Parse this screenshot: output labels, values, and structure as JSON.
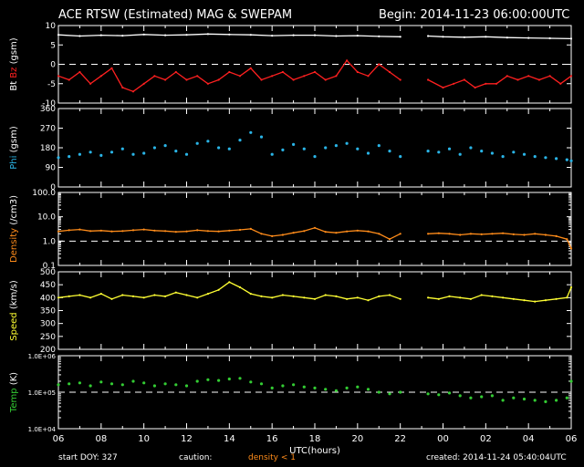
{
  "header": {
    "title": "ACE RTSW (Estimated) MAG & SWEPAM",
    "begin": "Begin: 2014-11-23 06:00:00UTC"
  },
  "footer": {
    "start_doy": "start DOY: 327",
    "caution": "caution:",
    "density_note": "density < 1",
    "created": "created: 2014-11-24 05:40:04UTC"
  },
  "colors": {
    "background": "#000000",
    "axes": "#ffffff",
    "bt": "#ffffff",
    "bz": "#ff2020",
    "phi": "#2ab4e6",
    "density": "#ff8c1a",
    "speed": "#ffff33",
    "temp": "#33cc33"
  },
  "chart_data": {
    "type": "scatter",
    "xlabel": "UTC(hours)",
    "x_ticks": [
      "06",
      "08",
      "10",
      "12",
      "14",
      "16",
      "18",
      "20",
      "22",
      "00",
      "02",
      "04",
      "06"
    ],
    "xlim_hours": [
      0,
      24
    ],
    "data_gap_hours": [
      16.05,
      17.3
    ],
    "panels": [
      {
        "id": "mag",
        "ylabel_parts": [
          {
            "text": "Bt",
            "color": "#ffffff"
          },
          {
            "text": "Bz",
            "color": "#ff2020"
          },
          {
            "text": "(gsm)",
            "color": "#ffffff"
          }
        ],
        "y_ticks": [
          "10",
          "5",
          "0",
          "-5",
          "-10"
        ],
        "y_tick_values": [
          10,
          5,
          0,
          -5,
          -10
        ],
        "ylim": [
          -10,
          10
        ],
        "scale": "linear",
        "dashed_ref": 0,
        "series": [
          {
            "key": "bt",
            "color": "#ffffff",
            "mode": "line",
            "x": [
              0,
              1,
              2,
              3,
              4,
              5,
              6,
              7,
              8,
              9,
              10,
              11,
              12,
              13,
              14,
              15,
              16,
              17.3,
              18,
              19,
              20,
              21,
              22,
              23,
              24
            ],
            "y": [
              7.6,
              7.3,
              7.5,
              7.4,
              7.7,
              7.5,
              7.6,
              7.8,
              7.7,
              7.6,
              7.4,
              7.5,
              7.5,
              7.3,
              7.4,
              7.2,
              7.1,
              7.3,
              7.1,
              7.0,
              7.1,
              6.9,
              6.8,
              6.7,
              6.6
            ]
          },
          {
            "key": "bz",
            "color": "#ff2020",
            "mode": "line",
            "x": [
              0,
              0.5,
              1,
              1.5,
              2,
              2.5,
              3,
              3.5,
              4,
              4.5,
              5,
              5.5,
              6,
              6.5,
              7,
              7.5,
              8,
              8.5,
              9,
              9.5,
              10,
              10.5,
              11,
              11.5,
              12,
              12.5,
              13,
              13.5,
              14,
              14.5,
              15,
              15.5,
              16,
              17.3,
              18,
              18.5,
              19,
              19.5,
              20,
              20.5,
              21,
              21.5,
              22,
              22.5,
              23,
              23.5,
              24
            ],
            "y": [
              -3,
              -4,
              -2,
              -5,
              -3,
              -1,
              -6,
              -7,
              -5,
              -3,
              -4,
              -2,
              -4,
              -3,
              -5,
              -4,
              -2,
              -3,
              -1,
              -4,
              -3,
              -2,
              -4,
              -3,
              -2,
              -4,
              -3,
              1,
              -2,
              -3,
              0,
              -2,
              -4,
              -4,
              -6,
              -5,
              -4,
              -6,
              -5,
              -5,
              -3,
              -4,
              -3,
              -4,
              -3,
              -5,
              -3
            ]
          }
        ]
      },
      {
        "id": "phi",
        "ylabel_parts": [
          {
            "text": "Phi",
            "color": "#2ab4e6"
          },
          {
            "text": "(gsm)",
            "color": "#ffffff"
          }
        ],
        "y_ticks": [
          "360",
          "270",
          "180",
          "90",
          "0"
        ],
        "y_tick_values": [
          360,
          270,
          180,
          90,
          0
        ],
        "ylim": [
          0,
          360
        ],
        "scale": "linear",
        "series": [
          {
            "key": "phi",
            "color": "#2ab4e6",
            "mode": "dots",
            "x": [
              0,
              0.5,
              1,
              1.5,
              2,
              2.5,
              3,
              3.5,
              4,
              4.5,
              5,
              5.5,
              6,
              6.5,
              7,
              7.5,
              8,
              8.5,
              9,
              9.5,
              10,
              10.5,
              11,
              11.5,
              12,
              12.5,
              13,
              13.5,
              14,
              14.5,
              15,
              15.5,
              16,
              17.3,
              17.8,
              18.3,
              18.8,
              19.3,
              19.8,
              20.3,
              20.8,
              21.3,
              21.8,
              22.3,
              22.8,
              23.3,
              23.8,
              24
            ],
            "y": [
              135,
              140,
              150,
              160,
              145,
              160,
              175,
              150,
              155,
              180,
              190,
              165,
              150,
              200,
              210,
              180,
              175,
              215,
              250,
              230,
              150,
              170,
              195,
              175,
              140,
              180,
              190,
              200,
              175,
              155,
              190,
              165,
              140,
              165,
              160,
              175,
              150,
              180,
              165,
              155,
              140,
              160,
              150,
              140,
              135,
              130,
              125,
              120
            ]
          }
        ]
      },
      {
        "id": "density",
        "ylabel_parts": [
          {
            "text": "Density",
            "color": "#ff8c1a"
          },
          {
            "text": "(/cm3)",
            "color": "#ffffff"
          }
        ],
        "y_ticks": [
          "100.0",
          "10.0",
          "1.0",
          "0.1"
        ],
        "y_tick_values": [
          100,
          10,
          1,
          0.1
        ],
        "ylim": [
          0.1,
          100
        ],
        "scale": "log",
        "dashed_ref": 1.0,
        "series": [
          {
            "key": "density",
            "color": "#ff8c1a",
            "mode": "line",
            "x": [
              0,
              0.5,
              1,
              1.5,
              2,
              2.5,
              3,
              3.5,
              4,
              4.5,
              5,
              5.5,
              6,
              6.5,
              7,
              7.5,
              8,
              8.5,
              9,
              9.5,
              10,
              10.5,
              11,
              11.5,
              12,
              12.5,
              13,
              13.5,
              14,
              14.5,
              15,
              15.5,
              16,
              17.3,
              17.8,
              18.3,
              18.8,
              19.3,
              19.8,
              20.3,
              20.8,
              21.3,
              21.8,
              22.3,
              22.8,
              23.3,
              23.8,
              24
            ],
            "y": [
              2.5,
              2.8,
              3.0,
              2.6,
              2.7,
              2.5,
              2.6,
              2.8,
              3.0,
              2.7,
              2.6,
              2.4,
              2.5,
              2.8,
              2.6,
              2.5,
              2.7,
              2.9,
              3.2,
              2.0,
              1.6,
              1.8,
              2.2,
              2.6,
              3.5,
              2.4,
              2.2,
              2.5,
              2.7,
              2.5,
              2.0,
              1.2,
              2.0,
              2.0,
              2.1,
              2.0,
              1.8,
              2.0,
              1.9,
              2.0,
              2.1,
              1.9,
              1.8,
              2.0,
              1.8,
              1.6,
              1.2,
              0.5
            ]
          }
        ]
      },
      {
        "id": "speed",
        "ylabel_parts": [
          {
            "text": "Speed",
            "color": "#ffff33"
          },
          {
            "text": "(km/s)",
            "color": "#ffffff"
          }
        ],
        "y_ticks": [
          "500",
          "450",
          "400",
          "350",
          "300",
          "250",
          "200"
        ],
        "y_tick_values": [
          500,
          450,
          400,
          350,
          300,
          250,
          200
        ],
        "ylim": [
          200,
          500
        ],
        "scale": "linear",
        "series": [
          {
            "key": "speed",
            "color": "#ffff33",
            "mode": "line",
            "x": [
              0,
              0.5,
              1,
              1.5,
              2,
              2.5,
              3,
              3.5,
              4,
              4.5,
              5,
              5.5,
              6,
              6.5,
              7,
              7.5,
              8,
              8.5,
              9,
              9.5,
              10,
              10.5,
              11,
              11.5,
              12,
              12.5,
              13,
              13.5,
              14,
              14.5,
              15,
              15.5,
              16,
              17.3,
              17.8,
              18.3,
              18.8,
              19.3,
              19.8,
              20.3,
              20.8,
              21.3,
              21.8,
              22.3,
              22.8,
              23.3,
              23.8,
              24
            ],
            "y": [
              400,
              405,
              410,
              400,
              415,
              395,
              410,
              405,
              400,
              410,
              405,
              420,
              410,
              400,
              415,
              430,
              460,
              440,
              415,
              405,
              400,
              410,
              405,
              400,
              395,
              410,
              405,
              395,
              400,
              390,
              405,
              410,
              395,
              400,
              395,
              405,
              400,
              395,
              410,
              405,
              400,
              395,
              390,
              385,
              390,
              395,
              400,
              440
            ]
          }
        ]
      },
      {
        "id": "temp",
        "ylabel_parts": [
          {
            "text": "Temp",
            "color": "#33cc33"
          },
          {
            "text": "(K)",
            "color": "#ffffff"
          }
        ],
        "y_ticks": [
          "1.0E+06",
          "1.0E+05",
          "1.0E+04"
        ],
        "y_tick_values": [
          1000000,
          100000,
          10000
        ],
        "ylim": [
          10000,
          1000000
        ],
        "scale": "log",
        "dashed_ref": 100000,
        "series": [
          {
            "key": "temp",
            "color": "#33cc33",
            "mode": "dots",
            "x": [
              0,
              0.5,
              1,
              1.5,
              2,
              2.5,
              3,
              3.5,
              4,
              4.5,
              5,
              5.5,
              6,
              6.5,
              7,
              7.5,
              8,
              8.5,
              9,
              9.5,
              10,
              10.5,
              11,
              11.5,
              12,
              12.5,
              13,
              13.5,
              14,
              14.5,
              15,
              15.5,
              16,
              17.3,
              17.8,
              18.3,
              18.8,
              19.3,
              19.8,
              20.3,
              20.8,
              21.3,
              21.8,
              22.3,
              22.8,
              23.3,
              23.8,
              24
            ],
            "y": [
              160000,
              170000,
              180000,
              150000,
              190000,
              170000,
              160000,
              200000,
              180000,
              150000,
              170000,
              160000,
              150000,
              200000,
              220000,
              210000,
              230000,
              240000,
              190000,
              170000,
              130000,
              150000,
              160000,
              140000,
              130000,
              120000,
              110000,
              130000,
              140000,
              120000,
              100000,
              90000,
              100000,
              90000,
              85000,
              95000,
              80000,
              70000,
              75000,
              80000,
              60000,
              70000,
              65000,
              60000,
              55000,
              60000,
              70000,
              200000
            ]
          }
        ]
      }
    ]
  }
}
